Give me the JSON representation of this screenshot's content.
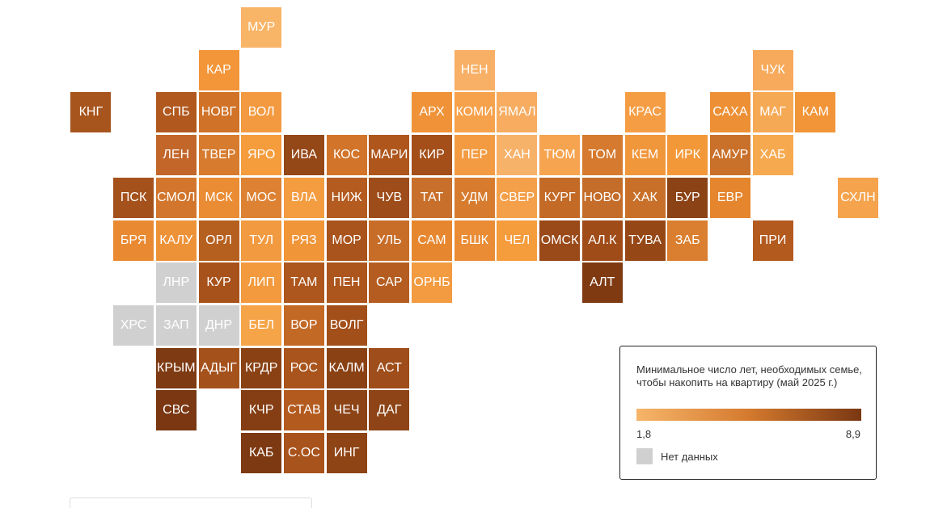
{
  "legend": {
    "title": "Минимальное число лет, необходимых семье, чтобы накопить на квартиру (май 2025 г.)",
    "min_label": "1,8",
    "max_label": "8,9",
    "no_data_label": "Нет данных",
    "color_low": "#f6b56a",
    "color_high": "#7a3712",
    "no_data_color": "#d0d0d0"
  },
  "regions": [
    {
      "label": "МУР",
      "col": 6,
      "row": 0,
      "color": "#f8b467"
    },
    {
      "label": "КАР",
      "col": 5,
      "row": 1,
      "color": "#f39539"
    },
    {
      "label": "НЕН",
      "col": 11,
      "row": 1,
      "color": "#f7b066"
    },
    {
      "label": "ЧУК",
      "col": 18,
      "row": 1,
      "color": "#f7aa5c"
    },
    {
      "label": "КНГ",
      "col": 2,
      "row": 2,
      "color": "#a8541d"
    },
    {
      "label": "СПБ",
      "col": 4,
      "row": 2,
      "color": "#b0581e"
    },
    {
      "label": "НОВГ",
      "col": 5,
      "row": 2,
      "color": "#d07227"
    },
    {
      "label": "ВОЛ",
      "col": 6,
      "row": 2,
      "color": "#f39a40"
    },
    {
      "label": "АРХ",
      "col": 10,
      "row": 2,
      "color": "#ef9238"
    },
    {
      "label": "КОМИ",
      "col": 11,
      "row": 2,
      "color": "#f6a14b"
    },
    {
      "label": "ЯМАЛ",
      "col": 12,
      "row": 2,
      "color": "#f7ac60"
    },
    {
      "label": "КРАС",
      "col": 15,
      "row": 2,
      "color": "#f59d44"
    },
    {
      "label": "САХА",
      "col": 17,
      "row": 2,
      "color": "#ed9035"
    },
    {
      "label": "МАГ",
      "col": 18,
      "row": 2,
      "color": "#f6a955"
    },
    {
      "label": "КАМ",
      "col": 19,
      "row": 2,
      "color": "#f19538"
    },
    {
      "label": "ЛЕН",
      "col": 4,
      "row": 3,
      "color": "#c2662a"
    },
    {
      "label": "ТВЕР",
      "col": 5,
      "row": 3,
      "color": "#d77b2e"
    },
    {
      "label": "ЯРО",
      "col": 6,
      "row": 3,
      "color": "#f59c3c"
    },
    {
      "label": "ИВА",
      "col": 7,
      "row": 3,
      "color": "#944717"
    },
    {
      "label": "КОС",
      "col": 8,
      "row": 3,
      "color": "#d2742a"
    },
    {
      "label": "МАРИ",
      "col": 9,
      "row": 3,
      "color": "#ae561c"
    },
    {
      "label": "КИР",
      "col": 10,
      "row": 3,
      "color": "#a44f1a"
    },
    {
      "label": "ПЕР",
      "col": 11,
      "row": 3,
      "color": "#f39b42"
    },
    {
      "label": "ХАН",
      "col": 12,
      "row": 3,
      "color": "#f7b26a"
    },
    {
      "label": "ТЮМ",
      "col": 13,
      "row": 3,
      "color": "#f6a450"
    },
    {
      "label": "ТОМ",
      "col": 14,
      "row": 3,
      "color": "#d57a2f"
    },
    {
      "label": "КЕМ",
      "col": 15,
      "row": 3,
      "color": "#f0963b"
    },
    {
      "label": "ИРК",
      "col": 16,
      "row": 3,
      "color": "#f39839"
    },
    {
      "label": "АМУР",
      "col": 17,
      "row": 3,
      "color": "#c9702a"
    },
    {
      "label": "ХАБ",
      "col": 18,
      "row": 3,
      "color": "#f7a94f"
    },
    {
      "label": "ПСК",
      "col": 3,
      "row": 4,
      "color": "#a5511c"
    },
    {
      "label": "СМОЛ",
      "col": 4,
      "row": 4,
      "color": "#d2762d"
    },
    {
      "label": "МСК",
      "col": 5,
      "row": 4,
      "color": "#ea8c33"
    },
    {
      "label": "МОС",
      "col": 6,
      "row": 4,
      "color": "#dd8232"
    },
    {
      "label": "ВЛА",
      "col": 7,
      "row": 4,
      "color": "#f39c40"
    },
    {
      "label": "НИЖ",
      "col": 8,
      "row": 4,
      "color": "#b45b20"
    },
    {
      "label": "ЧУВ",
      "col": 9,
      "row": 4,
      "color": "#9e4c19"
    },
    {
      "label": "ТАТ",
      "col": 10,
      "row": 4,
      "color": "#c8702b"
    },
    {
      "label": "УДМ",
      "col": 11,
      "row": 4,
      "color": "#d77c2f"
    },
    {
      "label": "СВЕР",
      "col": 12,
      "row": 4,
      "color": "#f4a04a"
    },
    {
      "label": "КУРГ",
      "col": 13,
      "row": 4,
      "color": "#c36a27"
    },
    {
      "label": "НОВО",
      "col": 14,
      "row": 4,
      "color": "#c46c29"
    },
    {
      "label": "ХАК",
      "col": 15,
      "row": 4,
      "color": "#c87029"
    },
    {
      "label": "БУР",
      "col": 16,
      "row": 4,
      "color": "#8b4214"
    },
    {
      "label": "ЕВР",
      "col": 17,
      "row": 4,
      "color": "#e5852e"
    },
    {
      "label": "СХЛН",
      "col": 20,
      "row": 4,
      "color": "#f5a34c"
    },
    {
      "label": "БРЯ",
      "col": 3,
      "row": 5,
      "color": "#e98a33"
    },
    {
      "label": "КАЛУ",
      "col": 4,
      "row": 5,
      "color": "#ee9238"
    },
    {
      "label": "ОРЛ",
      "col": 5,
      "row": 5,
      "color": "#b6601f"
    },
    {
      "label": "ТУЛ",
      "col": 6,
      "row": 5,
      "color": "#f29a3f"
    },
    {
      "label": "РЯЗ",
      "col": 7,
      "row": 5,
      "color": "#f09538"
    },
    {
      "label": "МОР",
      "col": 8,
      "row": 5,
      "color": "#a9541c"
    },
    {
      "label": "УЛЬ",
      "col": 9,
      "row": 5,
      "color": "#c86d28"
    },
    {
      "label": "САМ",
      "col": 10,
      "row": 5,
      "color": "#e6872f"
    },
    {
      "label": "БШК",
      "col": 11,
      "row": 5,
      "color": "#e98c35"
    },
    {
      "label": "ЧЕЛ",
      "col": 12,
      "row": 5,
      "color": "#f59c3d"
    },
    {
      "label": "ОМСК",
      "col": 13,
      "row": 5,
      "color": "#9a4918"
    },
    {
      "label": "АЛ.К",
      "col": 14,
      "row": 5,
      "color": "#a04c19"
    },
    {
      "label": "ТУВА",
      "col": 15,
      "row": 5,
      "color": "#964716"
    },
    {
      "label": "ЗАБ",
      "col": 16,
      "row": 5,
      "color": "#da7f2f"
    },
    {
      "label": "ПРИ",
      "col": 18,
      "row": 5,
      "color": "#b35a1f"
    },
    {
      "label": "ЛНР",
      "col": 4,
      "row": 6,
      "color": "#d0d0d0"
    },
    {
      "label": "КУР",
      "col": 5,
      "row": 6,
      "color": "#a8521b"
    },
    {
      "label": "ЛИП",
      "col": 6,
      "row": 6,
      "color": "#f29a3d"
    },
    {
      "label": "ТАМ",
      "col": 7,
      "row": 6,
      "color": "#ad561d"
    },
    {
      "label": "ПЕН",
      "col": 8,
      "row": 6,
      "color": "#ac551c"
    },
    {
      "label": "САР",
      "col": 9,
      "row": 6,
      "color": "#b55d21"
    },
    {
      "label": "ОРНБ",
      "col": 10,
      "row": 6,
      "color": "#f29b40"
    },
    {
      "label": "АЛТ",
      "col": 14,
      "row": 6,
      "color": "#7f3a12"
    },
    {
      "label": "ХРС",
      "col": 3,
      "row": 7,
      "color": "#d0d0d0"
    },
    {
      "label": "ЗАП",
      "col": 4,
      "row": 7,
      "color": "#d0d0d0"
    },
    {
      "label": "ДНР",
      "col": 5,
      "row": 7,
      "color": "#d0d0d0"
    },
    {
      "label": "БЕЛ",
      "col": 6,
      "row": 7,
      "color": "#f6a448"
    },
    {
      "label": "ВОР",
      "col": 7,
      "row": 7,
      "color": "#c36926"
    },
    {
      "label": "ВОЛГ",
      "col": 8,
      "row": 7,
      "color": "#a24f1a"
    },
    {
      "label": "КРЫМ",
      "col": 4,
      "row": 8,
      "color": "#7e3a12"
    },
    {
      "label": "АДЫГ",
      "col": 5,
      "row": 8,
      "color": "#a4511b"
    },
    {
      "label": "КРДР",
      "col": 6,
      "row": 8,
      "color": "#8a4215"
    },
    {
      "label": "РОС",
      "col": 7,
      "row": 8,
      "color": "#a9541c"
    },
    {
      "label": "КАЛМ",
      "col": 8,
      "row": 8,
      "color": "#8a4215"
    },
    {
      "label": "АСТ",
      "col": 9,
      "row": 8,
      "color": "#9f4d1a"
    },
    {
      "label": "СВС",
      "col": 4,
      "row": 9,
      "color": "#7a3712"
    },
    {
      "label": "КЧР",
      "col": 6,
      "row": 9,
      "color": "#853e13"
    },
    {
      "label": "СТАВ",
      "col": 7,
      "row": 9,
      "color": "#b35b1f"
    },
    {
      "label": "ЧЕЧ",
      "col": 8,
      "row": 9,
      "color": "#8c4316"
    },
    {
      "label": "ДАГ",
      "col": 9,
      "row": 9,
      "color": "#8e4416"
    },
    {
      "label": "КАБ",
      "col": 6,
      "row": 10,
      "color": "#7d3912"
    },
    {
      "label": "С.ОС",
      "col": 7,
      "row": 10,
      "color": "#a9531c"
    },
    {
      "label": "ИНГ",
      "col": 8,
      "row": 10,
      "color": "#8f4416"
    }
  ]
}
